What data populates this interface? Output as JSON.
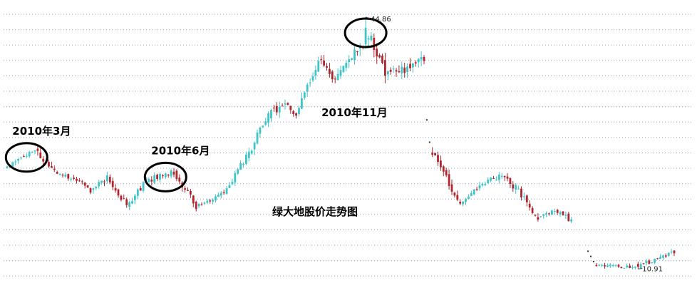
{
  "chart_data": {
    "type": "candlestick",
    "title": "绿大地股价走势图",
    "subtitle": "",
    "xlabel": "",
    "ylabel": "",
    "ylim": [
      9.5,
      46
    ],
    "grid": true,
    "legend": "none",
    "colors": {
      "up": "#3fc4c7",
      "down": "#b0262f",
      "wick": "#444444",
      "marker": "#000000"
    },
    "annotations": [
      {
        "text": "2010年3月",
        "at_index": 7
      },
      {
        "text": "2010年6月",
        "at_index": 57
      },
      {
        "text": "2010年11月",
        "at_index": 129
      }
    ],
    "circled_index": [
      7,
      57,
      129
    ],
    "max_label": {
      "value": "44.86",
      "at_index": 129
    },
    "min_label": {
      "value": "10.91",
      "at_index": 227
    },
    "gap_markers": [
      {
        "index": 151,
        "value": 31.0
      },
      {
        "index": 152,
        "value": 28.0
      },
      {
        "index": 209,
        "value": 13.3
      },
      {
        "index": 210,
        "value": 12.6
      },
      {
        "index": 211,
        "value": 11.9
      }
    ],
    "segments": [
      {
        "from_index": 0,
        "to_index": 10,
        "from_close": 24.5,
        "to_close": 27.0,
        "amp": 0.6
      },
      {
        "from_index": 10,
        "to_index": 17,
        "from_close": 27.0,
        "to_close": 24.0,
        "amp": 0.8
      },
      {
        "from_index": 17,
        "to_index": 25,
        "from_close": 24.0,
        "to_close": 23.0,
        "amp": 0.5
      },
      {
        "from_index": 25,
        "to_index": 30,
        "from_close": 23.0,
        "to_close": 21.5,
        "amp": 0.6
      },
      {
        "from_index": 30,
        "to_index": 36,
        "from_close": 21.5,
        "to_close": 23.2,
        "amp": 0.7
      },
      {
        "from_index": 36,
        "to_index": 43,
        "from_close": 23.2,
        "to_close": 19.5,
        "amp": 0.7
      },
      {
        "from_index": 43,
        "to_index": 50,
        "from_close": 19.5,
        "to_close": 22.8,
        "amp": 0.7
      },
      {
        "from_index": 50,
        "to_index": 60,
        "from_close": 22.8,
        "to_close": 24.0,
        "amp": 0.7
      },
      {
        "from_index": 60,
        "to_index": 68,
        "from_close": 24.0,
        "to_close": 19.4,
        "amp": 0.8
      },
      {
        "from_index": 68,
        "to_index": 78,
        "from_close": 19.4,
        "to_close": 21.2,
        "amp": 0.5
      },
      {
        "from_index": 78,
        "to_index": 86,
        "from_close": 21.2,
        "to_close": 26.0,
        "amp": 0.7
      },
      {
        "from_index": 86,
        "to_index": 94,
        "from_close": 26.0,
        "to_close": 31.5,
        "amp": 1.0
      },
      {
        "from_index": 94,
        "to_index": 100,
        "from_close": 31.5,
        "to_close": 33.5,
        "amp": 1.0
      },
      {
        "from_index": 100,
        "to_index": 104,
        "from_close": 33.5,
        "to_close": 31.8,
        "amp": 0.8
      },
      {
        "from_index": 104,
        "to_index": 112,
        "from_close": 31.8,
        "to_close": 39.0,
        "amp": 1.0
      },
      {
        "from_index": 112,
        "to_index": 118,
        "from_close": 39.0,
        "to_close": 36.5,
        "amp": 1.2
      },
      {
        "from_index": 118,
        "to_index": 126,
        "from_close": 36.5,
        "to_close": 40.5,
        "amp": 1.0
      },
      {
        "from_index": 126,
        "to_index": 131,
        "from_close": 40.5,
        "to_close": 42.0,
        "amp": 1.3
      },
      {
        "from_index": 131,
        "to_index": 136,
        "from_close": 42.0,
        "to_close": 37.0,
        "amp": 1.3
      },
      {
        "from_index": 136,
        "to_index": 150,
        "from_close": 37.0,
        "to_close": 39.0,
        "amp": 1.2
      },
      {
        "from_index": 153,
        "to_index": 157,
        "from_close": 26.5,
        "to_close": 24.0,
        "amp": 0.9
      },
      {
        "from_index": 157,
        "to_index": 162,
        "from_close": 24.0,
        "to_close": 19.8,
        "amp": 0.9
      },
      {
        "from_index": 162,
        "to_index": 172,
        "from_close": 19.8,
        "to_close": 22.5,
        "amp": 0.6
      },
      {
        "from_index": 172,
        "to_index": 178,
        "from_close": 22.5,
        "to_close": 23.6,
        "amp": 0.6
      },
      {
        "from_index": 178,
        "to_index": 183,
        "from_close": 23.6,
        "to_close": 21.8,
        "amp": 0.7
      },
      {
        "from_index": 183,
        "to_index": 191,
        "from_close": 21.8,
        "to_close": 17.8,
        "amp": 0.8
      },
      {
        "from_index": 191,
        "to_index": 197,
        "from_close": 17.8,
        "to_close": 19.0,
        "amp": 0.5
      },
      {
        "from_index": 197,
        "to_index": 203,
        "from_close": 19.0,
        "to_close": 17.3,
        "amp": 0.6
      },
      {
        "from_index": 212,
        "to_index": 226,
        "from_close": 11.5,
        "to_close": 11.1,
        "amp": 0.4
      },
      {
        "from_index": 226,
        "to_index": 240,
        "from_close": 11.1,
        "to_close": 13.3,
        "amp": 0.5
      }
    ]
  }
}
